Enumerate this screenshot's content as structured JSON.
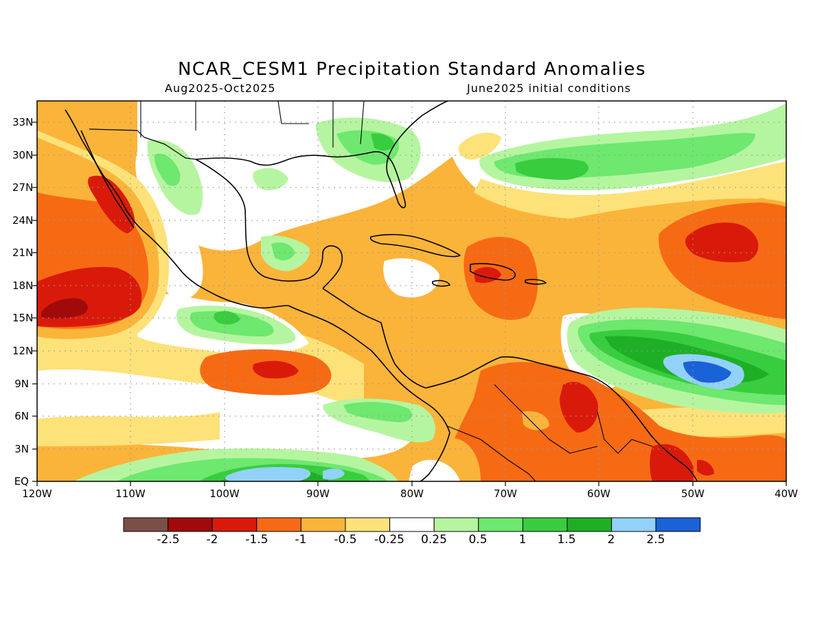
{
  "header": {
    "title": "NCAR_CESM1 Precipitation Standard Anomalies",
    "period": "Aug2025-Oct2025",
    "init": "June2025 initial conditions"
  },
  "lat_labels": [
    "33N",
    "30N",
    "27N",
    "24N",
    "21N",
    "18N",
    "15N",
    "12N",
    "9N",
    "6N",
    "3N",
    "EQ"
  ],
  "lon_labels": [
    "120W",
    "110W",
    "100W",
    "90W",
    "80W",
    "70W",
    "60W",
    "50W",
    "40W"
  ],
  "colorbar": {
    "labels": [
      "-2.5",
      "-2",
      "-1.5",
      "-1",
      "-0.5",
      "-0.25",
      "0.25",
      "0.5",
      "1",
      "1.5",
      "2",
      "2.5"
    ],
    "colors": [
      "#7a4f48",
      "#a00a0a",
      "#d91a0a",
      "#f76a14",
      "#fbb43a",
      "#fde27a",
      "#ffffff",
      "#b5f5a0",
      "#6ee86e",
      "#38cd3e",
      "#1eaf27",
      "#92d2fa",
      "#1a62d8"
    ]
  },
  "map": {
    "region": "120W-40W, EQ-35N",
    "field": "precipitation standard anomaly",
    "land_outline_color": "#000000",
    "grid_color": "#9a9a9a"
  }
}
